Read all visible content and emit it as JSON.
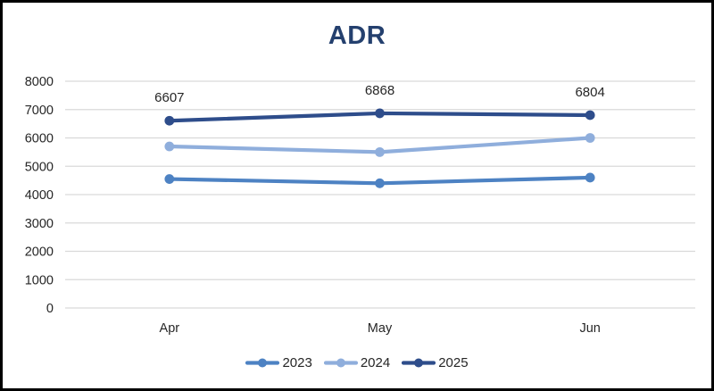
{
  "title": {
    "text": "ADR",
    "color": "#24406E"
  },
  "frame": {
    "background": "#FFFFFF",
    "border_color": "#000000"
  },
  "chart_data": {
    "type": "line",
    "title": "ADR",
    "categories": [
      "Apr",
      "May",
      "Jun"
    ],
    "series": [
      {
        "name": "2023",
        "color": "#4D82C3",
        "values": [
          4550,
          4400,
          4600
        ],
        "data_labels": false
      },
      {
        "name": "2024",
        "color": "#8FAEDC",
        "values": [
          5700,
          5500,
          6000
        ],
        "data_labels": false
      },
      {
        "name": "2025",
        "color": "#2E4D8B",
        "values": [
          6607,
          6868,
          6804
        ],
        "data_labels": true
      }
    ],
    "ylim": [
      0,
      8000
    ],
    "ytick_step": 1000,
    "yticks": [
      0,
      1000,
      2000,
      3000,
      4000,
      5000,
      6000,
      7000,
      8000
    ],
    "grid": true,
    "gridline_color": "#D9D9D9",
    "axis_text_color": "#262626",
    "data_label_color": "#262626",
    "legend_position": "bottom",
    "xlabel": "",
    "ylabel": ""
  }
}
